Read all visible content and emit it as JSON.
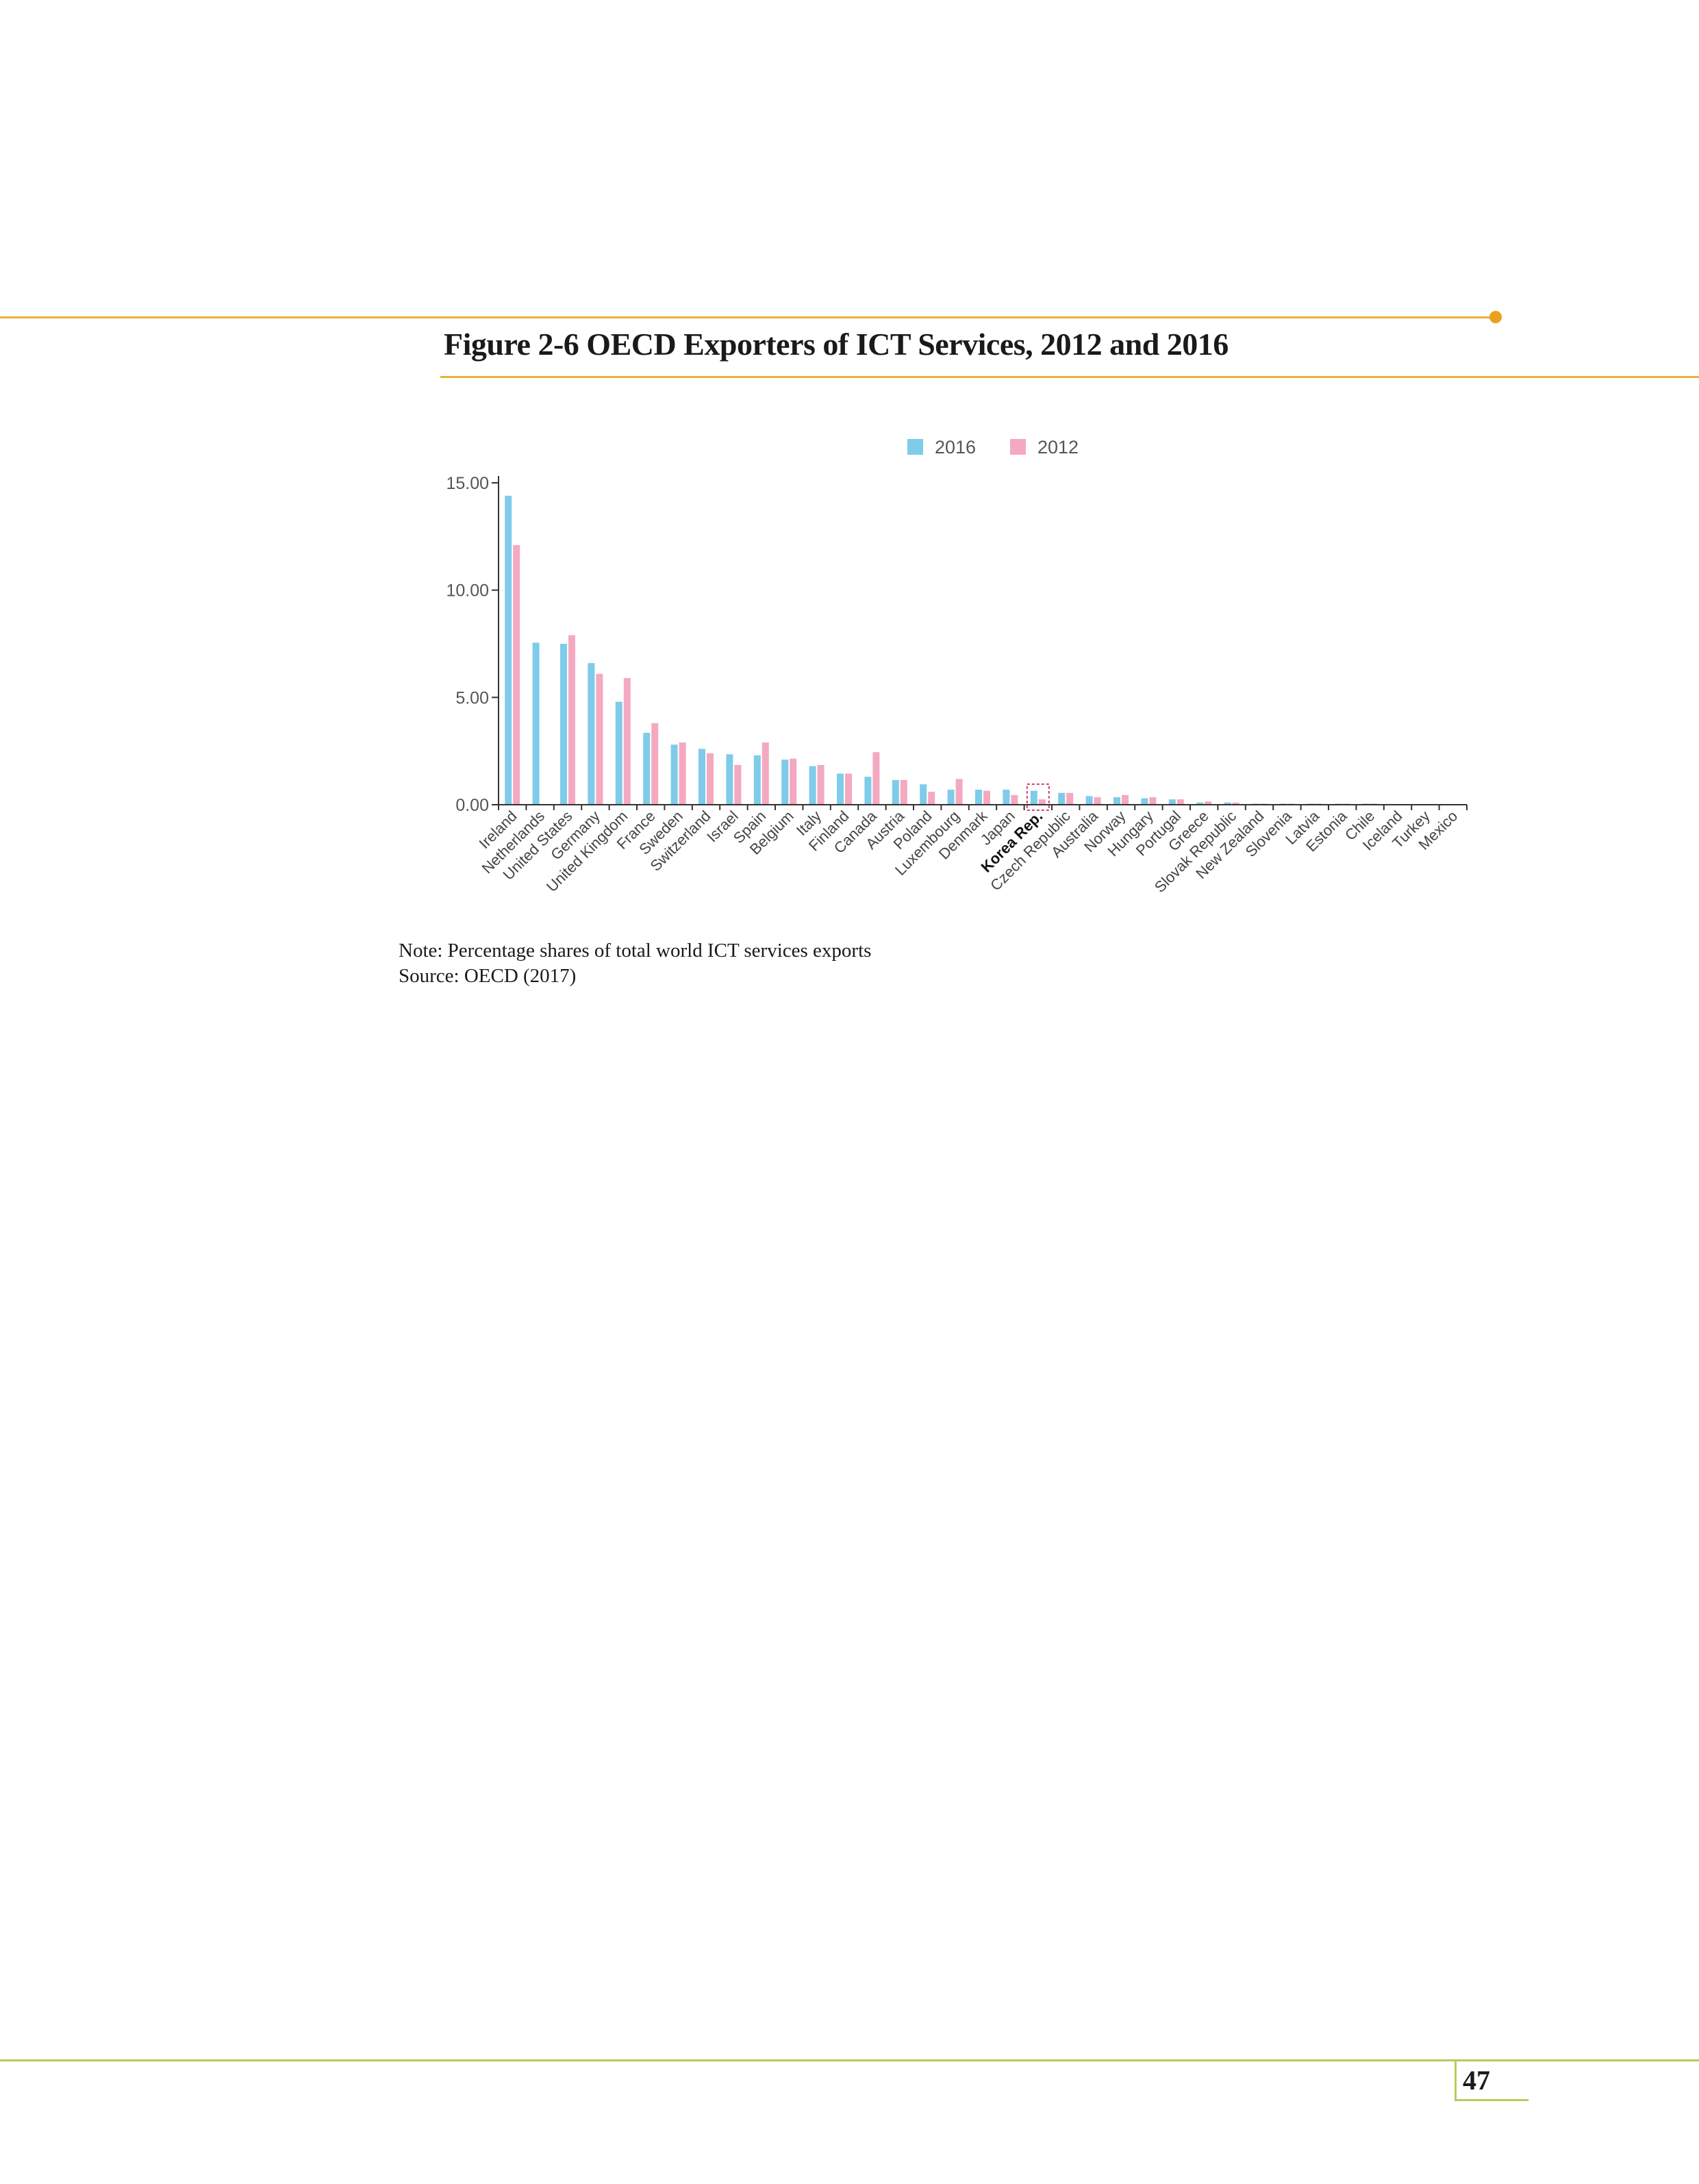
{
  "page": {
    "figure_title": "Figure 2-6  OECD Exporters of ICT Services, 2012 and 2016",
    "note": "Note: Percentage shares of total world ICT services exports",
    "source": "Source: OECD (2017)",
    "page_number": "47"
  },
  "colors": {
    "series_2016": "#7ecbea",
    "series_2012": "#f4a9c0",
    "accent_rule": "#e8b33a",
    "footer_rule": "#b8cc5a",
    "highlight": "#d0407a"
  },
  "chart_data": {
    "type": "bar",
    "title": "",
    "xlabel": "",
    "ylabel": "",
    "ylim": [
      0,
      15
    ],
    "y_ticks": [
      "0.00",
      "5.00",
      "10.00",
      "15.00"
    ],
    "legend_position": "top",
    "highlighted_category": "Korea Rep.",
    "categories": [
      "Ireland",
      "Netherlands",
      "United States",
      "Germany",
      "United Kingdom",
      "France",
      "Sweden",
      "Switzerland",
      "Israel",
      "Spain",
      "Belgium",
      "Italy",
      "Finland",
      "Canada",
      "Austria",
      "Poland",
      "Luxembourg",
      "Denmark",
      "Japan",
      "Korea Rep.",
      "Czech Republic",
      "Australia",
      "Norway",
      "Hungary",
      "Portugal",
      "Greece",
      "Slovak Republic",
      "New Zealand",
      "Slovenia",
      "Latvia",
      "Estonia",
      "Chile",
      "Iceland",
      "Turkey",
      "Mexico"
    ],
    "series": [
      {
        "name": "2016",
        "values": [
          14.4,
          7.55,
          7.5,
          6.6,
          4.8,
          3.35,
          2.8,
          2.6,
          2.35,
          2.3,
          2.1,
          1.8,
          1.45,
          1.3,
          1.15,
          0.95,
          0.7,
          0.7,
          0.7,
          0.65,
          0.55,
          0.4,
          0.35,
          0.3,
          0.25,
          0.1,
          0.1,
          0.05,
          0.05,
          0.05,
          0.05,
          0.05,
          0.03,
          0.03,
          0.02
        ]
      },
      {
        "name": "2012",
        "values": [
          12.1,
          0.0,
          7.9,
          6.1,
          5.9,
          3.8,
          2.9,
          2.4,
          1.85,
          2.9,
          2.15,
          1.85,
          1.45,
          2.45,
          1.15,
          0.6,
          1.2,
          0.65,
          0.45,
          0.25,
          0.55,
          0.35,
          0.45,
          0.35,
          0.25,
          0.15,
          0.1,
          0.05,
          0.05,
          0.05,
          0.05,
          0.05,
          0.03,
          0.03,
          0.02
        ]
      }
    ]
  }
}
